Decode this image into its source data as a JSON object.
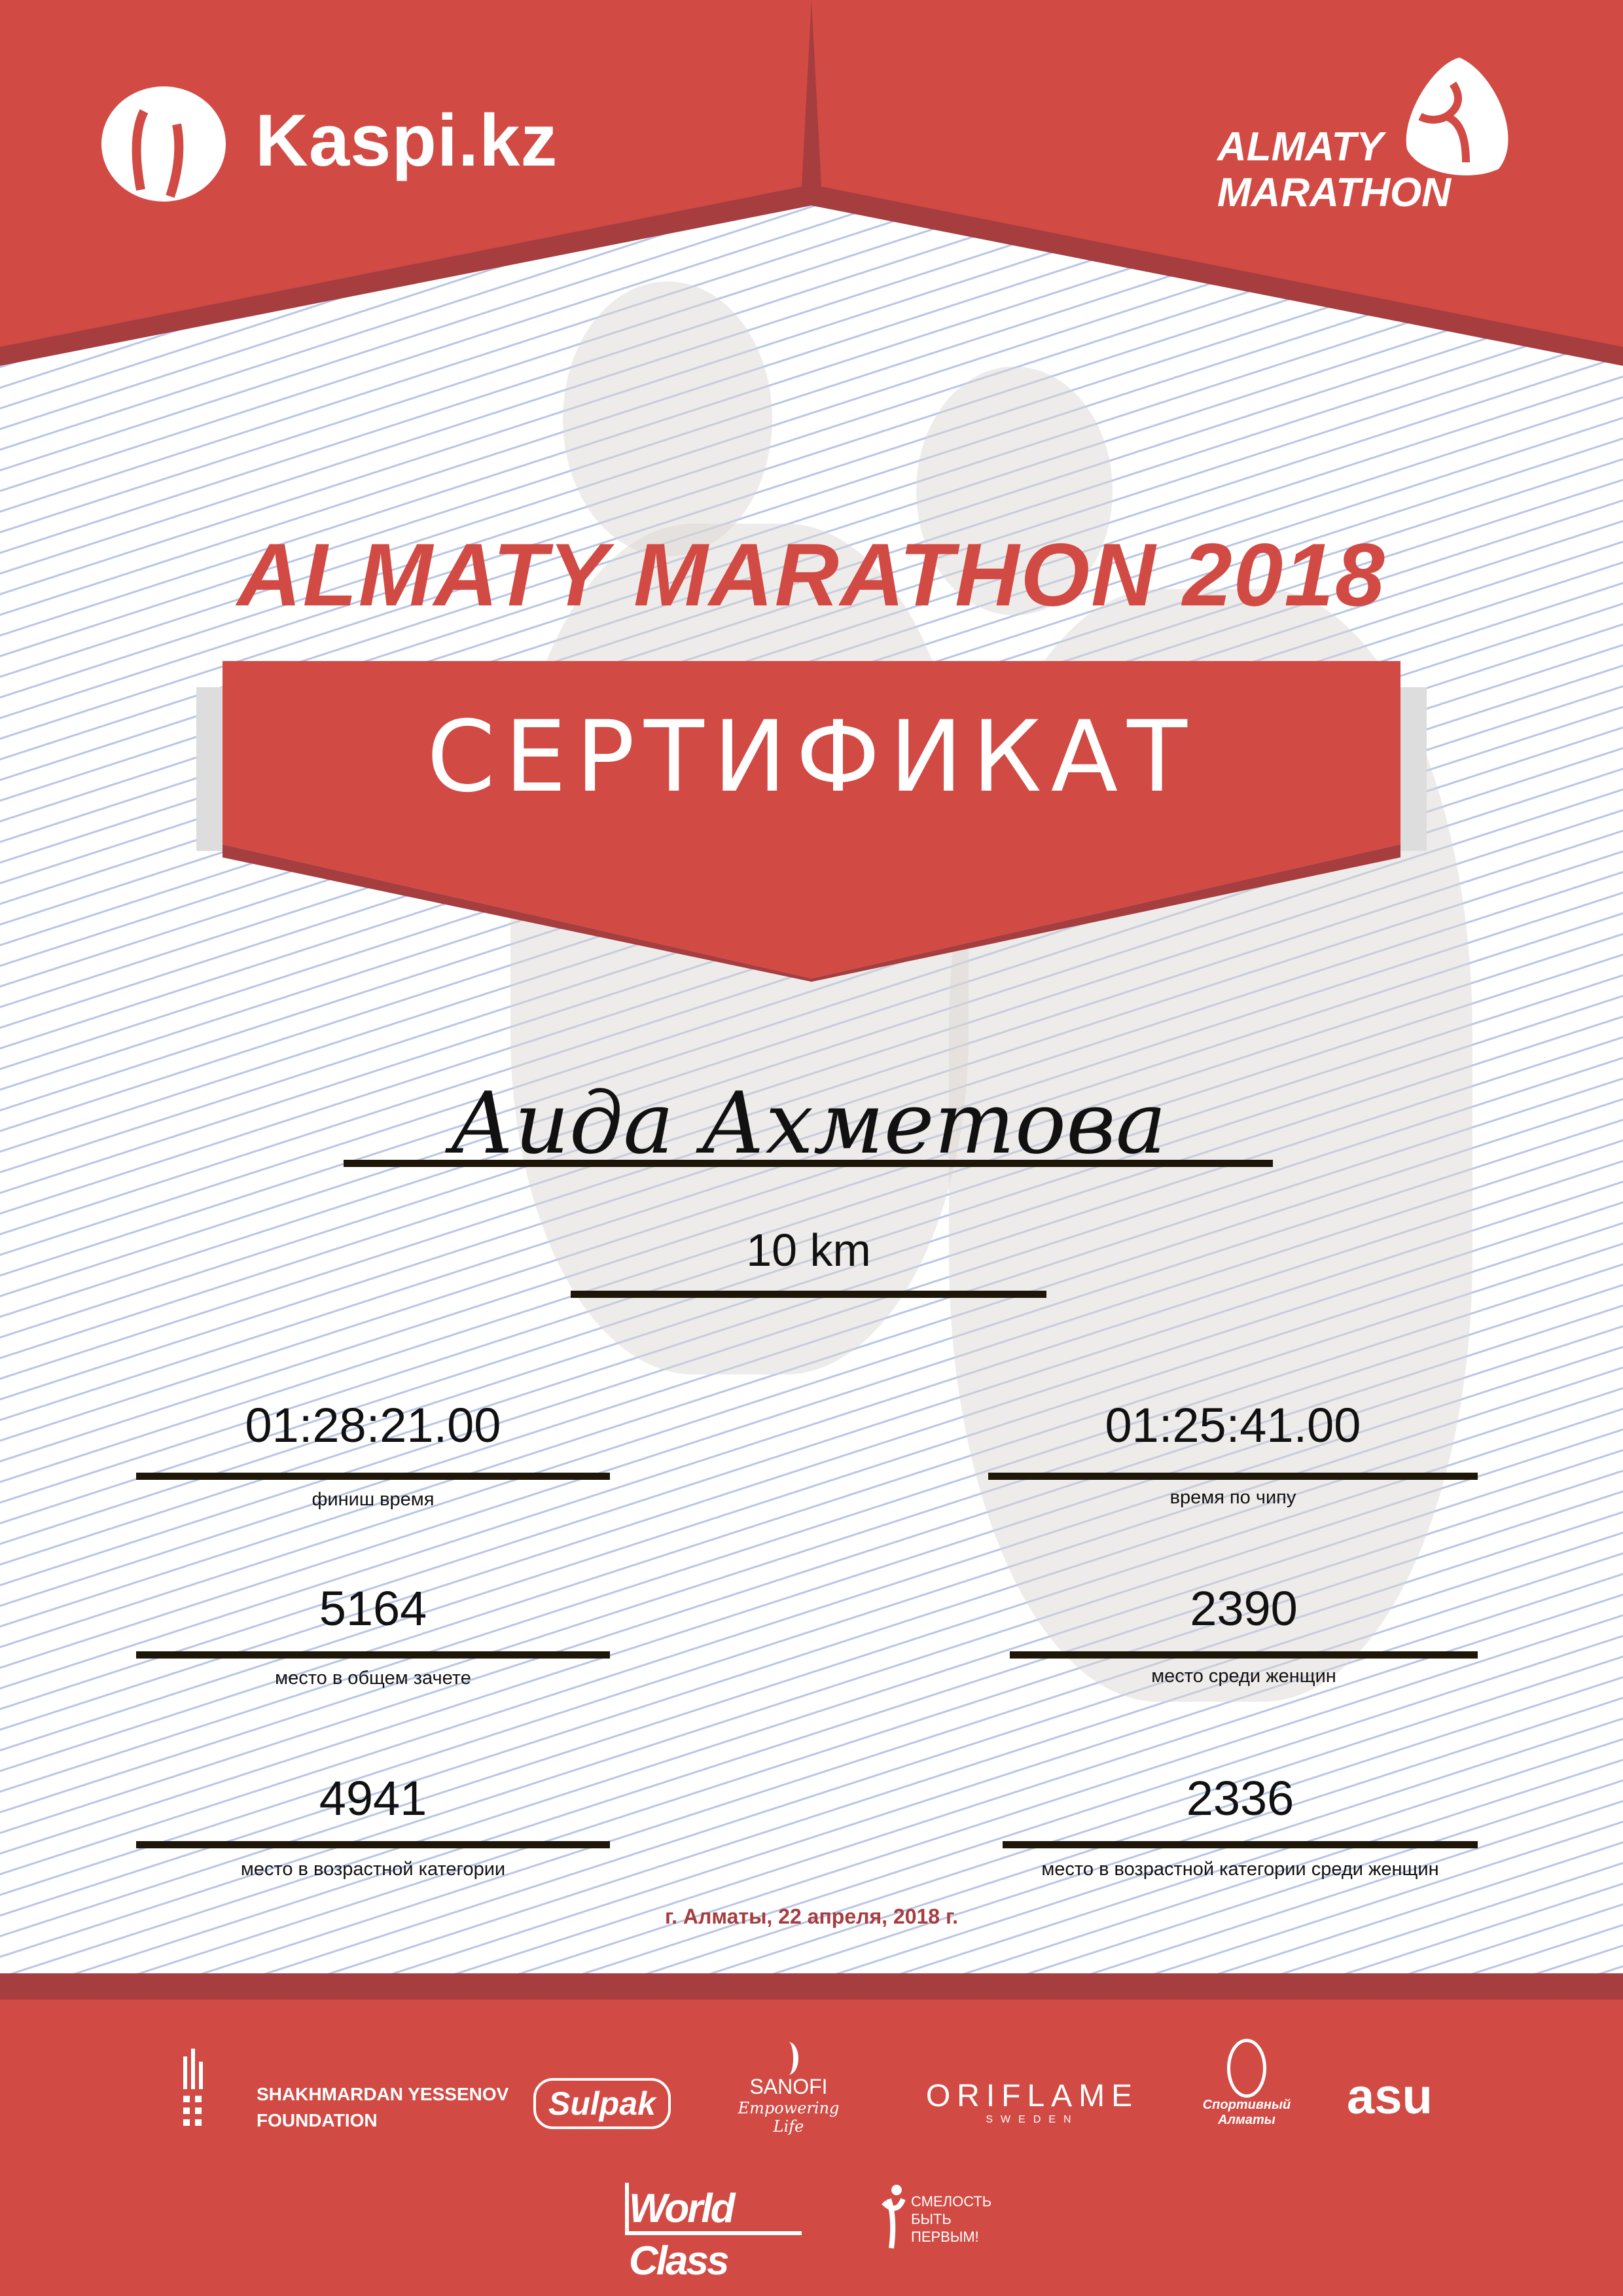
{
  "colors": {
    "brand_red": "#D24A44",
    "dark_red": "#A63D3F",
    "text": "#111111"
  },
  "header": {
    "sponsor_logo": "Kaspi.kz",
    "event_logo_line1": "ALMATY",
    "event_logo_line2": "MARATHON"
  },
  "title": "ALMATY MARATHON 2018",
  "banner": "СЕРТИФИКАТ",
  "participant": {
    "name": "Аида Ахметова",
    "distance": "10 km"
  },
  "results": [
    {
      "value": "01:28:21.00",
      "label": "финиш время"
    },
    {
      "value": "01:25:41.00",
      "label": "время по чипу"
    },
    {
      "value": "5164",
      "label": "место в общем зачете"
    },
    {
      "value": "2390",
      "label": "место среди женщин"
    },
    {
      "value": "4941",
      "label": "место в возрастной категории"
    },
    {
      "value": "2336",
      "label": "место в возрастной категории среди женщин"
    }
  ],
  "date": "г. Алматы, 22 апреля, 2018 г.",
  "partners": {
    "yessenov_line1": "SHAKHMARDAN YESSENOV",
    "yessenov_line2": "FOUNDATION",
    "sulpak": "Sulpak",
    "sanofi": "SANOFI",
    "sanofi_tagline": "Empowering Life",
    "oriflame": "ORIFLAME",
    "oriflame_sub": "SWEDEN",
    "sport_almaty": "Спортивный Алматы",
    "asu": "asu",
    "worldclass": "World Class",
    "smelost_line1": "СМЕЛОСТЬ",
    "smelost_line2": "БЫТЬ",
    "smelost_line3": "ПЕРВЫМ!"
  }
}
